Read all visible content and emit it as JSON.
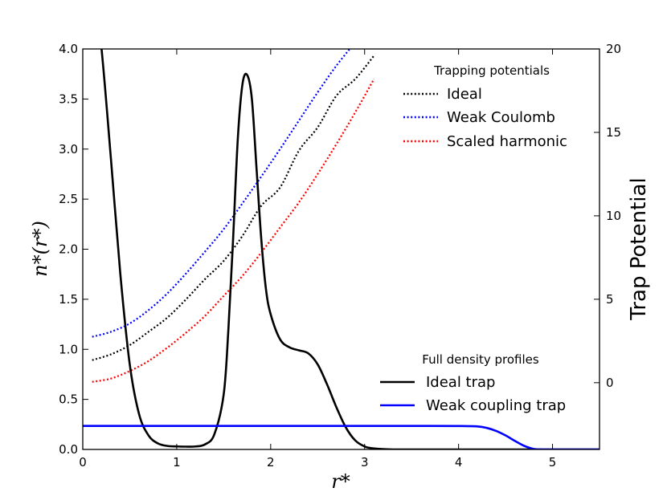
{
  "chart_data": {
    "type": "line",
    "xlabel": "r*",
    "ylabel_left": "n*(r*)",
    "ylabel_right": "Trap Potential",
    "xlim": [
      0,
      5.5
    ],
    "ylim_left": [
      0,
      4.0
    ],
    "ylim_right": [
      -4,
      20
    ],
    "x_ticks": [
      "0",
      "1",
      "2",
      "3",
      "4",
      "5"
    ],
    "y_left_ticks": [
      "0.0",
      "0.5",
      "1.0",
      "1.5",
      "2.0",
      "2.5",
      "3.0",
      "3.5",
      "4.0"
    ],
    "y_right_ticks": [
      "0",
      "5",
      "10",
      "15",
      "20"
    ],
    "grid": false,
    "legends": {
      "potentials": {
        "title": "Trapping potentials",
        "placement": "top-right",
        "entries": [
          {
            "label": "Ideal",
            "color": "#000000",
            "style": "dotted"
          },
          {
            "label": "Weak Coulomb",
            "color": "#0000ff",
            "style": "dotted"
          },
          {
            "label": "Scaled harmonic",
            "color": "#ff0000",
            "style": "dotted"
          }
        ]
      },
      "densities": {
        "title": "Full density profiles",
        "placement": "lower-right",
        "entries": [
          {
            "label": "Ideal trap",
            "color": "#000000",
            "style": "solid"
          },
          {
            "label": "Weak coupling trap",
            "color": "#0000ff",
            "style": "solid"
          }
        ]
      }
    },
    "density_series": [
      {
        "name": "Ideal trap",
        "color": "#000000",
        "axis": "left",
        "x": [
          0.1,
          0.2,
          0.3,
          0.4,
          0.5,
          0.6,
          0.7,
          0.8,
          0.9,
          1.0,
          1.1,
          1.2,
          1.3,
          1.4,
          1.5,
          1.55,
          1.6,
          1.65,
          1.7,
          1.75,
          1.8,
          1.85,
          1.9,
          1.95,
          2.0,
          2.1,
          2.2,
          2.3,
          2.4,
          2.5,
          2.6,
          2.7,
          2.8,
          2.9,
          3.0,
          3.1,
          3.3,
          3.6,
          4.0,
          4.5,
          5.0,
          5.5
        ],
        "y": [
          4.8,
          4.0,
          2.9,
          1.75,
          0.85,
          0.35,
          0.14,
          0.06,
          0.035,
          0.03,
          0.028,
          0.03,
          0.05,
          0.15,
          0.55,
          1.2,
          2.1,
          3.1,
          3.65,
          3.74,
          3.5,
          2.8,
          2.1,
          1.6,
          1.35,
          1.1,
          1.02,
          0.99,
          0.96,
          0.85,
          0.65,
          0.42,
          0.22,
          0.09,
          0.03,
          0.01,
          0.0,
          0.0,
          0.0,
          0.0,
          0.0,
          0.0
        ]
      },
      {
        "name": "Weak coupling trap",
        "color": "#0000ff",
        "axis": "left",
        "x": [
          0,
          0.5,
          1.0,
          1.5,
          2.0,
          2.5,
          3.0,
          3.5,
          4.0,
          4.2,
          4.3,
          4.4,
          4.5,
          4.6,
          4.7,
          4.8,
          4.9,
          5.0,
          5.5
        ],
        "y": [
          0.235,
          0.235,
          0.235,
          0.235,
          0.235,
          0.235,
          0.235,
          0.235,
          0.234,
          0.23,
          0.215,
          0.185,
          0.14,
          0.085,
          0.035,
          0.005,
          0.0,
          0.0,
          0.0
        ]
      }
    ],
    "potential_series": [
      {
        "name": "Ideal",
        "color": "#000000",
        "axis": "right",
        "x": [
          0.1,
          0.3,
          0.5,
          0.7,
          0.9,
          1.1,
          1.3,
          1.5,
          1.7,
          1.9,
          2.1,
          2.3,
          2.5,
          2.7,
          2.9,
          3.1
        ],
        "y": [
          1.35,
          1.7,
          2.25,
          3.05,
          3.9,
          5.0,
          6.2,
          7.3,
          8.8,
          10.6,
          11.7,
          13.9,
          15.3,
          17.2,
          18.2,
          19.6
        ]
      },
      {
        "name": "Weak Coulomb",
        "color": "#0000ff",
        "axis": "right",
        "x": [
          0.1,
          0.3,
          0.5,
          0.7,
          0.9,
          1.1,
          1.3,
          1.5,
          1.7,
          1.9,
          2.1,
          2.3,
          2.5,
          2.7,
          2.9
        ],
        "y": [
          2.75,
          3.05,
          3.55,
          4.35,
          5.35,
          6.55,
          7.85,
          9.2,
          10.75,
          12.35,
          14.0,
          15.7,
          17.4,
          19.0,
          20.4
        ]
      },
      {
        "name": "Scaled harmonic",
        "color": "#ff0000",
        "axis": "right",
        "x": [
          0.1,
          0.3,
          0.5,
          0.7,
          0.9,
          1.1,
          1.3,
          1.5,
          1.7,
          1.9,
          2.1,
          2.3,
          2.5,
          2.7,
          2.9,
          3.1
        ],
        "y": [
          0.05,
          0.25,
          0.7,
          1.3,
          2.1,
          3.0,
          4.0,
          5.2,
          6.4,
          7.8,
          9.3,
          10.8,
          12.5,
          14.3,
          16.2,
          18.2
        ]
      }
    ]
  }
}
